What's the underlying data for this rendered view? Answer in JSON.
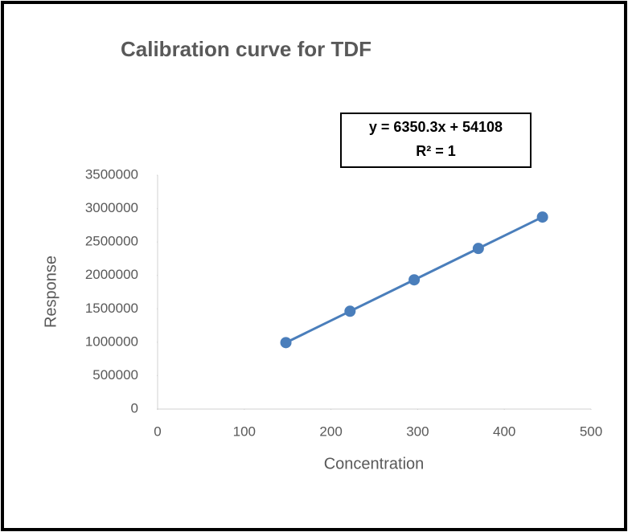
{
  "chart_data": {
    "type": "scatter",
    "title": "Calibration curve for TDF",
    "x_label": "Concentration",
    "y_label": "Response",
    "annotations": [
      "y = 6350.3x + 54108",
      "R² = 1"
    ],
    "x": [
      148,
      222,
      296,
      370,
      444
    ],
    "values": [
      993952,
      1463874,
      1933797,
      2403719,
      2873641
    ],
    "color": "#4a7ebb",
    "trendline": true,
    "xlim": [
      0,
      500
    ],
    "xticks": [
      0,
      100,
      200,
      300,
      400,
      500
    ],
    "ylim": [
      0,
      3500000
    ],
    "yticks": [
      0,
      500000,
      1000000,
      1500000,
      2000000,
      2500000,
      3000000,
      3500000
    ],
    "grid": false
  }
}
